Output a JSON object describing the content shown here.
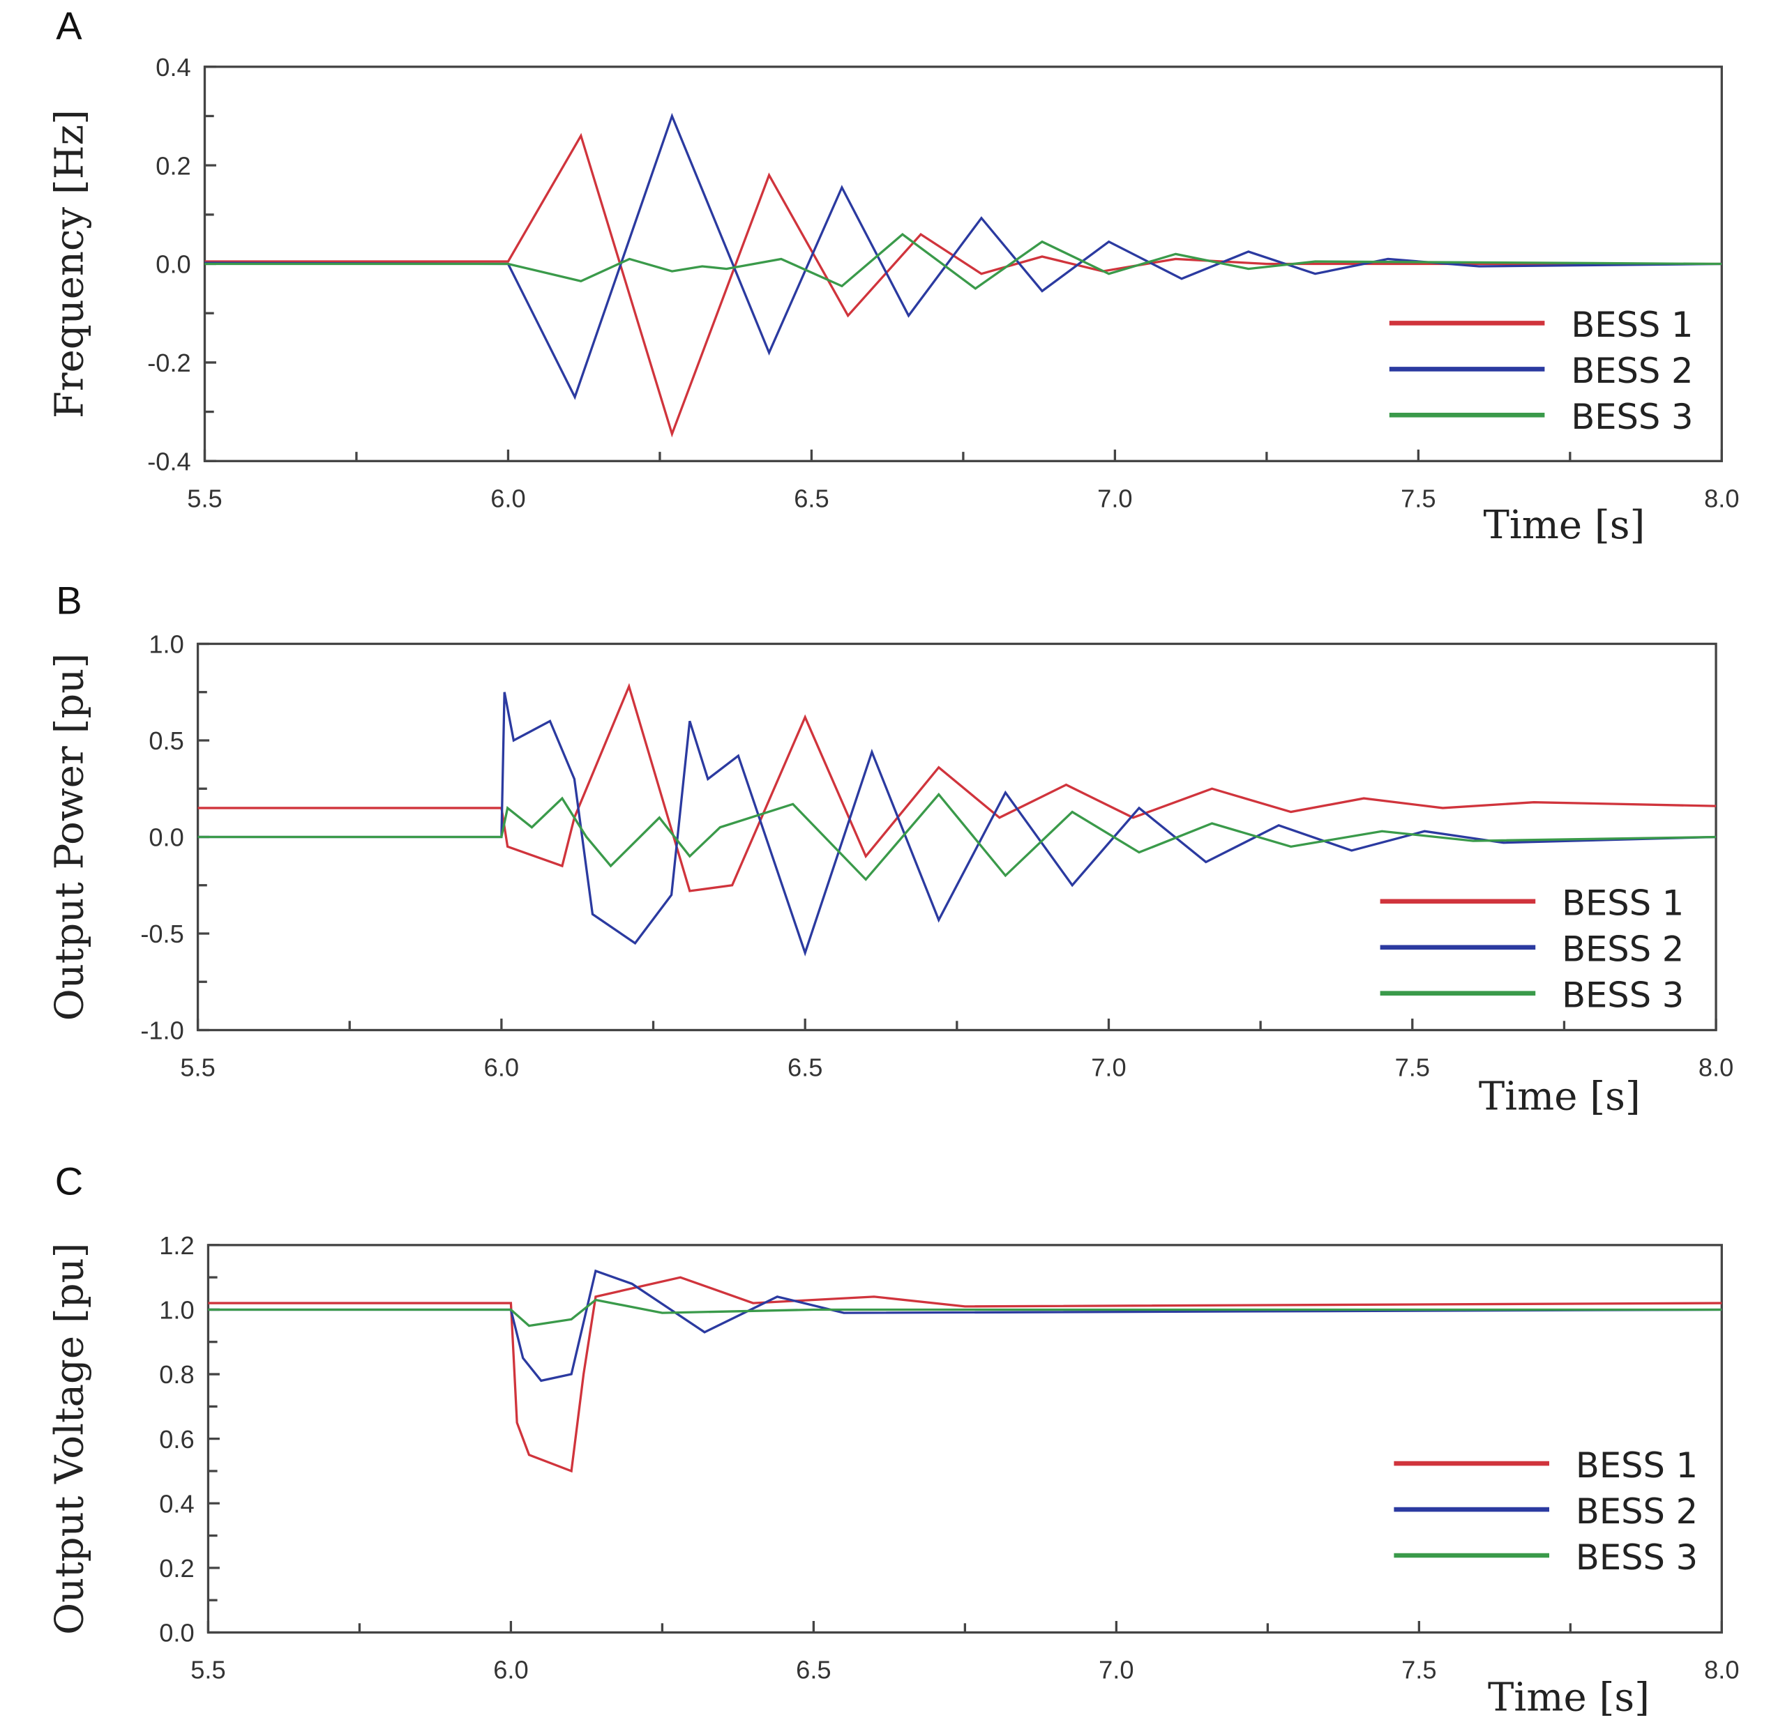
{
  "colors": {
    "BESS 1": "#d0343c",
    "BESS 2": "#2b3aa0",
    "BESS 3": "#3a9a4a"
  },
  "chart_data": [
    {
      "panel": "A",
      "type": "line",
      "xlabel": "Time [s]",
      "ylabel": "Frequency [Hz]",
      "xlim": [
        5.5,
        8.0
      ],
      "ylim": [
        -0.4,
        0.4
      ],
      "xticks": [
        "5.5",
        "6.0",
        "6.5",
        "7.0",
        "7.5",
        "8.0"
      ],
      "yticks": [
        "0.4",
        "0.2",
        "0.0",
        "-0.2",
        "-0.4"
      ],
      "legend": "center-right",
      "series": [
        {
          "name": "BESS 1",
          "x": [
            5.5,
            6.0,
            6.12,
            6.27,
            6.43,
            6.56,
            6.68,
            6.78,
            6.88,
            6.98,
            7.1,
            7.25,
            8.0
          ],
          "y": [
            0.005,
            0.005,
            0.26,
            -0.345,
            0.18,
            -0.105,
            0.06,
            -0.02,
            0.015,
            -0.015,
            0.01,
            0,
            0
          ]
        },
        {
          "name": "BESS 2",
          "x": [
            5.5,
            6.0,
            6.11,
            6.27,
            6.43,
            6.55,
            6.66,
            6.78,
            6.88,
            6.99,
            7.11,
            7.22,
            7.33,
            7.45,
            7.6,
            8.0
          ],
          "y": [
            0.002,
            0,
            -0.27,
            0.3,
            -0.18,
            0.155,
            -0.105,
            0.093,
            -0.055,
            0.045,
            -0.03,
            0.025,
            -0.02,
            0.01,
            -0.005,
            0
          ]
        },
        {
          "name": "BESS 3",
          "x": [
            5.5,
            6.0,
            6.12,
            6.2,
            6.27,
            6.32,
            6.36,
            6.45,
            6.55,
            6.65,
            6.77,
            6.88,
            6.99,
            7.1,
            7.22,
            7.33,
            8.0
          ],
          "y": [
            0,
            0,
            -0.035,
            0.01,
            -0.015,
            -0.005,
            -0.01,
            0.01,
            -0.045,
            0.06,
            -0.05,
            0.045,
            -0.02,
            0.02,
            -0.01,
            0.005,
            0
          ]
        }
      ]
    },
    {
      "panel": "B",
      "type": "line",
      "xlabel": "Time [s]",
      "ylabel": "Output Power [pu]",
      "xlim": [
        5.5,
        8.0
      ],
      "ylim": [
        -1.0,
        1.0
      ],
      "xticks": [
        "5.5",
        "6.0",
        "6.5",
        "7.0",
        "7.5",
        "8.0"
      ],
      "yticks": [
        "1.0",
        "0.5",
        "0.0",
        "-0.5",
        "-1.0"
      ],
      "legend": "lower-right",
      "series": [
        {
          "name": "BESS 1",
          "x": [
            5.5,
            6.0,
            6.01,
            6.1,
            6.12,
            6.21,
            6.31,
            6.38,
            6.5,
            6.6,
            6.72,
            6.82,
            6.93,
            7.04,
            7.17,
            7.3,
            7.42,
            7.55,
            7.7,
            8.0
          ],
          "y": [
            0.15,
            0.15,
            -0.05,
            -0.15,
            0.1,
            0.78,
            -0.28,
            -0.25,
            0.62,
            -0.1,
            0.36,
            0.1,
            0.27,
            0.1,
            0.25,
            0.13,
            0.2,
            0.15,
            0.18,
            0.16
          ]
        },
        {
          "name": "BESS 2",
          "x": [
            5.5,
            6.0,
            6.005,
            6.02,
            6.08,
            6.12,
            6.15,
            6.22,
            6.28,
            6.31,
            6.34,
            6.39,
            6.5,
            6.61,
            6.72,
            6.83,
            6.94,
            7.05,
            7.16,
            7.28,
            7.4,
            7.52,
            7.65,
            8.0
          ],
          "y": [
            0,
            0,
            0.75,
            0.5,
            0.6,
            0.3,
            -0.4,
            -0.55,
            -0.3,
            0.6,
            0.3,
            0.42,
            -0.6,
            0.44,
            -0.43,
            0.23,
            -0.25,
            0.15,
            -0.13,
            0.06,
            -0.07,
            0.03,
            -0.03,
            0
          ]
        },
        {
          "name": "BESS 3",
          "x": [
            5.5,
            6.0,
            6.01,
            6.05,
            6.1,
            6.14,
            6.18,
            6.26,
            6.31,
            6.36,
            6.48,
            6.6,
            6.72,
            6.83,
            6.94,
            7.05,
            7.17,
            7.3,
            7.45,
            7.6,
            8.0
          ],
          "y": [
            0,
            0,
            0.15,
            0.05,
            0.2,
            0,
            -0.15,
            0.1,
            -0.1,
            0.05,
            0.17,
            -0.22,
            0.22,
            -0.2,
            0.13,
            -0.08,
            0.07,
            -0.05,
            0.03,
            -0.02,
            0
          ]
        }
      ]
    },
    {
      "panel": "C",
      "type": "line",
      "xlabel": "Time [s]",
      "ylabel": "Output Voltage [pu]",
      "xlim": [
        5.5,
        8.0
      ],
      "ylim": [
        0.0,
        1.2
      ],
      "xticks": [
        "5.5",
        "6.0",
        "6.5",
        "7.0",
        "7.5",
        "8.0"
      ],
      "yticks": [
        "1.2",
        "1.0",
        "0.8",
        "0.6",
        "0.4",
        "0.2",
        "0.0"
      ],
      "legend": "center-right",
      "series": [
        {
          "name": "BESS 1",
          "x": [
            5.5,
            6.0,
            6.01,
            6.03,
            6.1,
            6.12,
            6.14,
            6.28,
            6.4,
            6.6,
            6.75,
            8.0
          ],
          "y": [
            1.02,
            1.02,
            0.65,
            0.55,
            0.5,
            0.8,
            1.04,
            1.1,
            1.02,
            1.04,
            1.01,
            1.02
          ]
        },
        {
          "name": "BESS 2",
          "x": [
            5.5,
            6.0,
            6.02,
            6.05,
            6.1,
            6.14,
            6.2,
            6.32,
            6.44,
            6.55,
            8.0
          ],
          "y": [
            1.0,
            1.0,
            0.85,
            0.78,
            0.8,
            1.12,
            1.08,
            0.93,
            1.04,
            0.99,
            1.0
          ]
        },
        {
          "name": "BESS 3",
          "x": [
            5.5,
            6.0,
            6.03,
            6.1,
            6.14,
            6.25,
            6.5,
            8.0
          ],
          "y": [
            1.0,
            1.0,
            0.95,
            0.97,
            1.03,
            0.99,
            1.0,
            1.0
          ]
        }
      ]
    }
  ]
}
